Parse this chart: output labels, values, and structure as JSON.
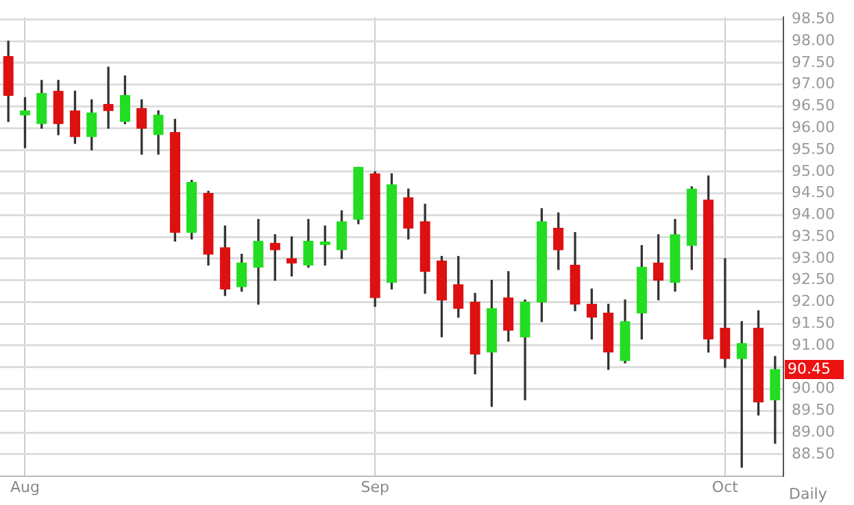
{
  "chart_data": {
    "type": "candlestick",
    "categories": [
      null,
      "Aug",
      null,
      null,
      null,
      null,
      null,
      null,
      null,
      null,
      null,
      null,
      null,
      null,
      null,
      null,
      null,
      null,
      null,
      null,
      null,
      null,
      "Sep",
      null,
      null,
      null,
      null,
      null,
      null,
      null,
      null,
      null,
      null,
      null,
      null,
      null,
      null,
      null,
      null,
      null,
      null,
      null,
      null,
      "Oct",
      null,
      null,
      null
    ],
    "ohlc": [
      [
        97.65,
        98.0,
        96.15,
        96.75
      ],
      [
        96.3,
        96.7,
        95.55,
        96.4
      ],
      [
        96.1,
        97.1,
        96.0,
        96.8
      ],
      [
        96.85,
        97.1,
        95.85,
        96.1
      ],
      [
        96.4,
        96.85,
        95.65,
        95.8
      ],
      [
        95.8,
        96.65,
        95.5,
        96.35
      ],
      [
        96.55,
        97.4,
        96.0,
        96.4
      ],
      [
        96.15,
        97.2,
        96.1,
        96.75
      ],
      [
        96.45,
        96.65,
        95.4,
        96.0
      ],
      [
        95.85,
        96.4,
        95.4,
        96.3
      ],
      [
        95.9,
        96.2,
        93.4,
        93.6
      ],
      [
        93.6,
        94.8,
        93.45,
        94.75
      ],
      [
        94.5,
        94.55,
        92.85,
        93.1
      ],
      [
        93.25,
        93.75,
        92.15,
        92.3
      ],
      [
        92.35,
        93.1,
        92.25,
        92.9
      ],
      [
        92.8,
        93.9,
        91.95,
        93.4
      ],
      [
        93.35,
        93.55,
        92.5,
        93.2
      ],
      [
        93.0,
        93.5,
        92.6,
        92.9
      ],
      [
        92.85,
        93.9,
        92.8,
        93.4
      ],
      [
        93.32,
        93.75,
        92.85,
        93.38
      ],
      [
        93.2,
        94.1,
        93.0,
        93.85
      ],
      [
        93.9,
        95.1,
        93.8,
        95.1
      ],
      [
        94.95,
        95.0,
        91.9,
        92.1
      ],
      [
        92.45,
        94.95,
        92.3,
        94.7
      ],
      [
        94.4,
        94.6,
        93.45,
        93.7
      ],
      [
        93.85,
        94.25,
        92.2,
        92.7
      ],
      [
        92.95,
        93.05,
        91.2,
        92.05
      ],
      [
        92.4,
        93.05,
        91.65,
        91.85
      ],
      [
        92.0,
        92.2,
        90.35,
        90.8
      ],
      [
        90.85,
        92.5,
        89.6,
        91.85
      ],
      [
        92.1,
        92.7,
        91.1,
        91.35
      ],
      [
        91.2,
        92.05,
        89.75,
        92.0
      ],
      [
        92.0,
        94.15,
        91.55,
        93.85
      ],
      [
        93.7,
        94.05,
        92.75,
        93.2
      ],
      [
        92.85,
        93.6,
        91.8,
        91.95
      ],
      [
        91.95,
        92.3,
        91.15,
        91.65
      ],
      [
        91.75,
        91.95,
        90.45,
        90.85
      ],
      [
        90.65,
        92.05,
        90.6,
        91.55
      ],
      [
        91.75,
        93.3,
        91.15,
        92.8
      ],
      [
        92.9,
        93.55,
        92.05,
        92.5
      ],
      [
        92.45,
        93.9,
        92.25,
        93.55
      ],
      [
        93.3,
        94.65,
        92.75,
        94.6
      ],
      [
        94.35,
        94.9,
        90.85,
        91.15
      ],
      [
        91.4,
        93.0,
        90.5,
        90.7
      ],
      [
        90.7,
        91.55,
        88.2,
        91.05
      ],
      [
        91.4,
        91.8,
        89.4,
        89.7
      ],
      [
        89.75,
        90.75,
        88.75,
        90.45
      ]
    ],
    "colors": [
      "#dd1111",
      "#22dd22",
      "#22dd22",
      "#dd1111",
      "#dd1111",
      "#22dd22",
      "#dd1111",
      "#22dd22",
      "#dd1111",
      "#22dd22",
      "#dd1111",
      "#22dd22",
      "#dd1111",
      "#dd1111",
      "#22dd22",
      "#22dd22",
      "#dd1111",
      "#dd1111",
      "#22dd22",
      "#22dd22",
      "#22dd22",
      "#22dd22",
      "#dd1111",
      "#22dd22",
      "#dd1111",
      "#dd1111",
      "#dd1111",
      "#dd1111",
      "#dd1111",
      "#22dd22",
      "#dd1111",
      "#22dd22",
      "#22dd22",
      "#dd1111",
      "#dd1111",
      "#dd1111",
      "#dd1111",
      "#22dd22",
      "#22dd22",
      "#dd1111",
      "#22dd22",
      "#22dd22",
      "#dd1111",
      "#dd1111",
      "#22dd22",
      "#dd1111",
      "#22dd22"
    ],
    "ylim": [
      88.0,
      98.55
    ],
    "yticks": [
      {
        "value": 88.5,
        "label": "88.50"
      },
      {
        "value": 89,
        "label": "89.00"
      },
      {
        "value": 89.5,
        "label": "89.50"
      },
      {
        "value": 90,
        "label": "90.00"
      },
      {
        "value": 90.5,
        "label": null
      },
      {
        "value": 91,
        "label": "91.00"
      },
      {
        "value": 91.5,
        "label": "91.50"
      },
      {
        "value": 92,
        "label": "92.00"
      },
      {
        "value": 92.5,
        "label": "92.50"
      },
      {
        "value": 93,
        "label": "93.00"
      },
      {
        "value": 93.5,
        "label": "93.50"
      },
      {
        "value": 94,
        "label": "94.00"
      },
      {
        "value": 94.5,
        "label": "94.50"
      },
      {
        "value": 95,
        "label": "95.00"
      },
      {
        "value": 95.5,
        "label": "95.50"
      },
      {
        "value": 96,
        "label": "96.00"
      },
      {
        "value": 96.5,
        "label": "96.50"
      },
      {
        "value": 97,
        "label": "97.00"
      },
      {
        "value": 97.5,
        "label": "97.50"
      },
      {
        "value": 98,
        "label": "98.00"
      },
      {
        "value": 98.5,
        "label": "98.50"
      }
    ],
    "grid": true,
    "legend": false,
    "annotations": [
      "90.45",
      "Daily"
    ]
  }
}
